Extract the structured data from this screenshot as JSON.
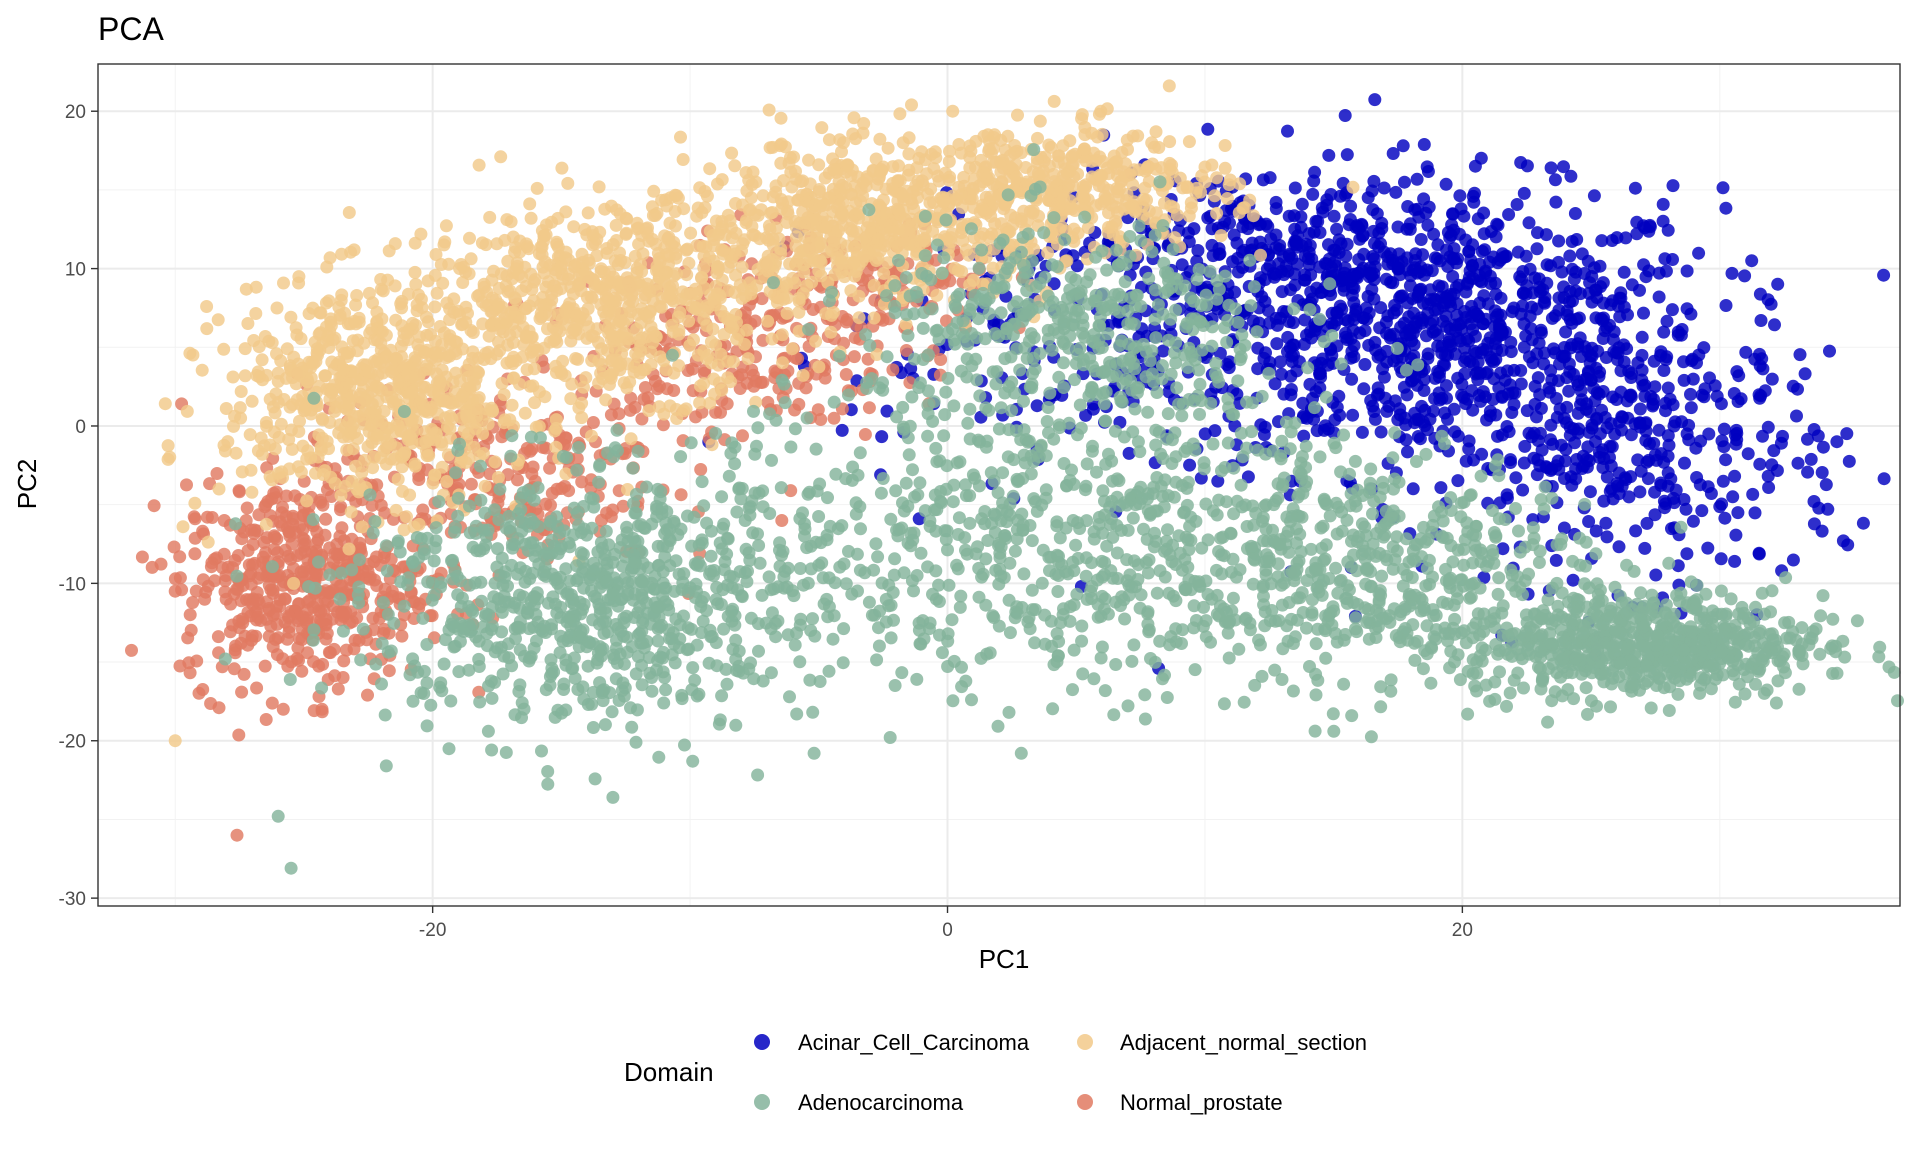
{
  "chart_data": {
    "type": "scatter",
    "title": "PCA",
    "xlabel": "PC1",
    "ylabel": "PC2",
    "xlim": [
      -33,
      37
    ],
    "ylim": [
      -30.5,
      23
    ],
    "x_ticks": [
      -20,
      0,
      20
    ],
    "y_ticks": [
      20,
      10,
      0,
      -10,
      -20,
      -30
    ],
    "grid": true,
    "legend": {
      "title": "Domain",
      "position": "bottom",
      "layout": "2 columns"
    },
    "series": [
      {
        "name": "Acinar_Cell_Carcinoma",
        "color": "#0000C0",
        "points": [
          [
            20.8,
            6.5
          ],
          [
            30.5,
            -4.5
          ],
          [
            24.5,
            0.8
          ],
          [
            17.7,
            17.8
          ],
          [
            34.8,
            -7.3
          ],
          [
            31.6,
            6.7
          ],
          [
            32.4,
            -9.2
          ],
          [
            10.5,
            -3.5
          ],
          [
            8.2,
            -15.4
          ],
          [
            5.2,
            -10.2
          ],
          [
            -1.1,
            -5.9
          ],
          [
            -2.6,
            -3.1
          ],
          [
            28.2,
            -4.6
          ],
          [
            24.3,
            -9.8
          ],
          [
            16.9,
            -5.3
          ]
        ],
        "clusters": [
          {
            "cx": 19,
            "cy": 6,
            "sx": 5.5,
            "sy": 4.5,
            "n": 950
          },
          {
            "cx": 27,
            "cy": -2,
            "sx": 4,
            "sy": 4,
            "n": 320
          },
          {
            "cx": 12,
            "cy": 11,
            "sx": 4,
            "sy": 3,
            "n": 260
          },
          {
            "cx": 4,
            "cy": 5,
            "sx": 4,
            "sy": 4,
            "n": 140
          }
        ]
      },
      {
        "name": "Adjacent_normal_section",
        "color": "#F2C98A",
        "points": [
          [
            -30,
            -20
          ],
          [
            -29.7,
            -6.4
          ],
          [
            -25.4,
            -10
          ],
          [
            -23,
            3
          ],
          [
            -18,
            9
          ],
          [
            0.2,
            20
          ],
          [
            -1.4,
            20.4
          ],
          [
            5.6,
            18.6
          ],
          [
            8.1,
            18.7
          ],
          [
            10,
            15.5
          ]
        ],
        "clusters": [
          {
            "cx": -22,
            "cy": 2,
            "sx": 3,
            "sy": 3.5,
            "n": 700
          },
          {
            "cx": -13,
            "cy": 8,
            "sx": 3.5,
            "sy": 3,
            "n": 650
          },
          {
            "cx": -3,
            "cy": 13,
            "sx": 3.5,
            "sy": 2.5,
            "n": 600
          },
          {
            "cx": 5,
            "cy": 15,
            "sx": 3,
            "sy": 2,
            "n": 380
          }
        ]
      },
      {
        "name": "Adenocarcinoma",
        "color": "#84B39B",
        "points": [
          [
            -26,
            -24.8
          ],
          [
            -25.5,
            -28.1
          ],
          [
            -13,
            -23.6
          ],
          [
            -21.8,
            -21.6
          ],
          [
            -9.9,
            -21.3
          ],
          [
            -12.1,
            -20.1
          ],
          [
            34.5,
            -14
          ],
          [
            32.2,
            -17.6
          ],
          [
            15.7,
            -18.4
          ],
          [
            -0.2,
            -14.4
          ]
        ],
        "clusters": [
          {
            "cx": -14,
            "cy": -11,
            "sx": 4.5,
            "sy": 4,
            "n": 800
          },
          {
            "cx": 4,
            "cy": -7,
            "sx": 7,
            "sy": 5,
            "n": 700
          },
          {
            "cx": 27,
            "cy": -14,
            "sx": 3.5,
            "sy": 1.6,
            "n": 650
          },
          {
            "cx": 16,
            "cy": -9,
            "sx": 5,
            "sy": 3.5,
            "n": 500
          },
          {
            "cx": 5,
            "cy": 6,
            "sx": 4,
            "sy": 3.5,
            "n": 420
          }
        ]
      },
      {
        "name": "Normal_prostate",
        "color": "#E07A62",
        "points": [
          [
            -27.6,
            -26
          ],
          [
            -30,
            -10.5
          ],
          [
            -28.3,
            -17.9
          ],
          [
            -25.8,
            -18
          ],
          [
            -24.3,
            -18
          ],
          [
            -6.2,
            3.5
          ]
        ],
        "clusters": [
          {
            "cx": -25,
            "cy": -10,
            "sx": 2.4,
            "sy": 3.2,
            "n": 500
          },
          {
            "cx": -18,
            "cy": -3,
            "sx": 3.5,
            "sy": 3,
            "n": 280
          },
          {
            "cx": -8,
            "cy": 5,
            "sx": 3,
            "sy": 3,
            "n": 220
          },
          {
            "cx": -3,
            "cy": 9,
            "sx": 2.5,
            "sy": 2,
            "n": 120
          }
        ]
      }
    ]
  }
}
